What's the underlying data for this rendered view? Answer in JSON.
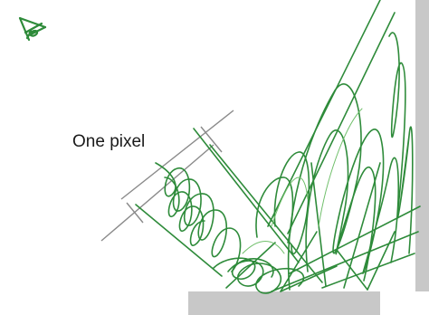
{
  "annotation": {
    "label": "One pixel"
  },
  "colors": {
    "background": "#ffffff",
    "ray": "#2e8b3a",
    "ray_light": "#6fbf6a",
    "wall": "#c8c8c8",
    "dimension_line": "#8a8a8a"
  },
  "elements": {
    "light_source_icon": "light-source-cursor-icon",
    "wall": "grey-vertical-wall",
    "floor": "grey-floor-slab"
  }
}
